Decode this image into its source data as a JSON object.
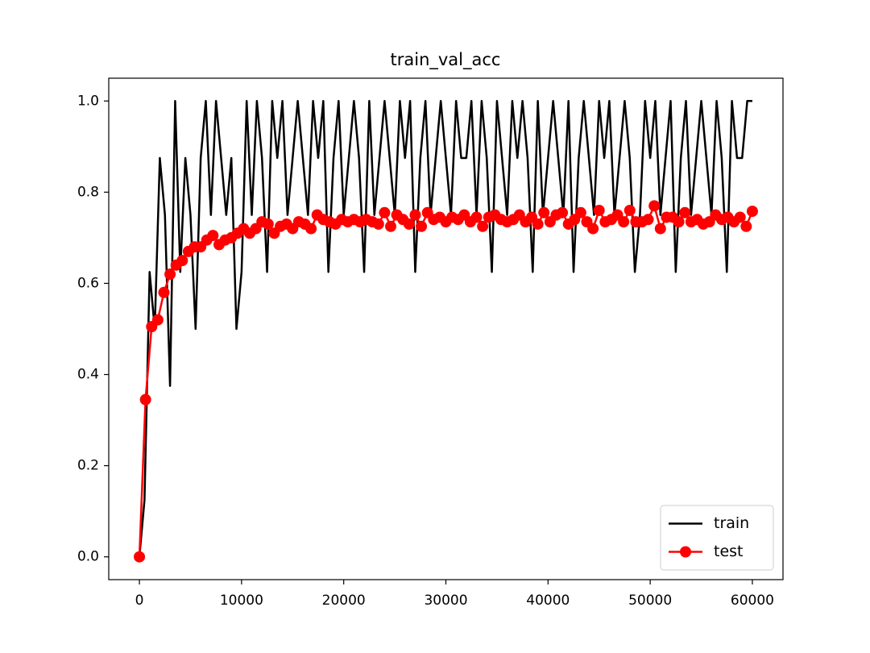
{
  "chart_data": {
    "type": "line",
    "title": "train_val_acc",
    "xlim": [
      -3000,
      63000
    ],
    "xticks": [
      0,
      10000,
      20000,
      30000,
      40000,
      50000,
      60000
    ],
    "ylim": [
      -0.05,
      1.05
    ],
    "yticks": [
      {
        "value": 0,
        "label": "0.0"
      },
      0.2,
      0.4,
      0.6,
      0.8,
      {
        "value": 1,
        "label": "1.0"
      }
    ],
    "legend": "lower right",
    "series": [
      {
        "name": "train",
        "color": "#000000",
        "marker": false,
        "x": [
          0,
          500,
          1000,
          1500,
          2000,
          2500,
          3000,
          3500,
          4000,
          4500,
          5000,
          5500,
          6000,
          6500,
          7000,
          7500,
          8000,
          8500,
          9000,
          9500,
          10000,
          10500,
          11000,
          11500,
          12000,
          12500,
          13000,
          13500,
          14000,
          14500,
          15000,
          15500,
          16000,
          16500,
          17000,
          17500,
          18000,
          18500,
          19000,
          19500,
          20000,
          20500,
          21000,
          21500,
          22000,
          22500,
          23000,
          23500,
          24000,
          24500,
          25000,
          25500,
          26000,
          26500,
          27000,
          27500,
          28000,
          28500,
          29000,
          29500,
          30000,
          30500,
          31000,
          31500,
          32000,
          32500,
          33000,
          33500,
          34000,
          34500,
          35000,
          35500,
          36000,
          36500,
          37000,
          37500,
          38000,
          38500,
          39000,
          39500,
          40000,
          40500,
          41000,
          41500,
          42000,
          42500,
          43000,
          43500,
          44000,
          44500,
          45000,
          45500,
          46000,
          46500,
          47000,
          47500,
          48000,
          48500,
          49000,
          49500,
          50000,
          50500,
          51000,
          51500,
          52000,
          52500,
          53000,
          53500,
          54000,
          54500,
          55000,
          55500,
          56000,
          56500,
          57000,
          57500,
          58000,
          58500,
          59000,
          59500,
          60000
        ],
        "values": [
          0,
          0.125,
          0.625,
          0.5,
          0.875,
          0.75,
          0.375,
          1,
          0.625,
          0.875,
          0.75,
          0.5,
          0.875,
          1,
          0.75,
          1,
          0.875,
          0.75,
          0.875,
          0.5,
          0.625,
          1,
          0.75,
          1,
          0.875,
          0.625,
          1,
          0.875,
          1,
          0.75,
          0.875,
          1,
          0.875,
          0.75,
          1,
          0.875,
          1,
          0.625,
          0.875,
          1,
          0.75,
          0.875,
          1,
          0.875,
          0.625,
          1,
          0.75,
          0.875,
          1,
          0.875,
          0.75,
          1,
          0.875,
          1,
          0.625,
          0.875,
          1,
          0.75,
          0.875,
          1,
          0.875,
          0.75,
          1,
          0.875,
          0.875,
          1,
          0.75,
          1,
          0.875,
          0.625,
          1,
          0.875,
          0.75,
          1,
          0.875,
          1,
          0.875,
          0.625,
          1,
          0.75,
          0.875,
          1,
          0.875,
          0.75,
          1,
          0.625,
          0.875,
          1,
          0.875,
          0.75,
          1,
          0.875,
          1,
          0.75,
          0.875,
          1,
          0.875,
          0.625,
          0.75,
          1,
          0.875,
          1,
          0.75,
          0.875,
          1,
          0.625,
          0.875,
          1,
          0.75,
          0.875,
          1,
          0.875,
          0.75,
          1,
          0.875,
          0.625,
          1,
          0.875,
          0.875,
          1,
          1
        ]
      },
      {
        "name": "test",
        "color": "#ff0000",
        "marker": true,
        "x": [
          0,
          600,
          1200,
          1800,
          2400,
          3000,
          3600,
          4200,
          4800,
          5400,
          6000,
          6600,
          7200,
          7800,
          8400,
          9000,
          9600,
          10200,
          10800,
          11400,
          12000,
          12600,
          13200,
          13800,
          14400,
          15000,
          15600,
          16200,
          16800,
          17400,
          18000,
          18600,
          19200,
          19800,
          20400,
          21000,
          21600,
          22200,
          22800,
          23400,
          24000,
          24600,
          25200,
          25800,
          26400,
          27000,
          27600,
          28200,
          28800,
          29400,
          30000,
          30600,
          31200,
          31800,
          32400,
          33000,
          33600,
          34200,
          34800,
          35400,
          36000,
          36600,
          37200,
          37800,
          38400,
          39000,
          39600,
          40200,
          40800,
          41400,
          42000,
          42600,
          43200,
          43800,
          44400,
          45000,
          45600,
          46200,
          46800,
          47400,
          48000,
          48600,
          49200,
          49800,
          50400,
          51000,
          51600,
          52200,
          52800,
          53400,
          54000,
          54600,
          55200,
          55800,
          56400,
          57000,
          57600,
          58200,
          58800,
          59400,
          60000
        ],
        "values": [
          0,
          0.345,
          0.505,
          0.52,
          0.58,
          0.62,
          0.64,
          0.65,
          0.67,
          0.68,
          0.68,
          0.695,
          0.705,
          0.685,
          0.695,
          0.7,
          0.71,
          0.72,
          0.71,
          0.72,
          0.735,
          0.73,
          0.71,
          0.725,
          0.73,
          0.72,
          0.735,
          0.73,
          0.72,
          0.75,
          0.74,
          0.735,
          0.73,
          0.74,
          0.735,
          0.74,
          0.735,
          0.74,
          0.735,
          0.73,
          0.755,
          0.725,
          0.75,
          0.74,
          0.73,
          0.75,
          0.725,
          0.755,
          0.74,
          0.745,
          0.735,
          0.745,
          0.74,
          0.75,
          0.735,
          0.745,
          0.725,
          0.745,
          0.75,
          0.74,
          0.735,
          0.74,
          0.75,
          0.735,
          0.745,
          0.73,
          0.755,
          0.735,
          0.75,
          0.755,
          0.73,
          0.74,
          0.755,
          0.735,
          0.72,
          0.76,
          0.735,
          0.74,
          0.75,
          0.735,
          0.76,
          0.735,
          0.735,
          0.74,
          0.77,
          0.72,
          0.745,
          0.745,
          0.735,
          0.755,
          0.735,
          0.74,
          0.73,
          0.735,
          0.75,
          0.74,
          0.745,
          0.735,
          0.745,
          0.725,
          0.758
        ]
      }
    ]
  }
}
